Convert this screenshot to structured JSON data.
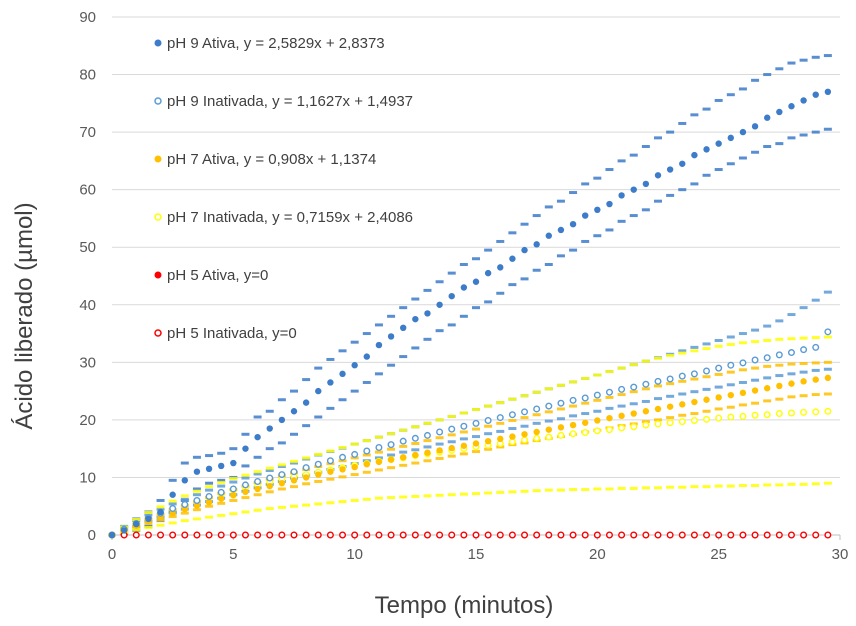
{
  "chart_data": {
    "type": "scatter",
    "title": "",
    "xlabel": "Tempo (minutos)",
    "ylabel": "Ácido liberado (µmol)",
    "xlim": [
      0,
      30
    ],
    "ylim": [
      0,
      90
    ],
    "x_ticks": [
      0,
      5,
      10,
      15,
      20,
      25,
      30
    ],
    "y_ticks": [
      0,
      10,
      20,
      30,
      40,
      50,
      60,
      70,
      80,
      90
    ],
    "grid": "horizontal",
    "legend_position": "top-left",
    "x_step": 0.5,
    "series": [
      {
        "name": "pH 9 Ativa, y = 2,5829x + 2,8373",
        "color": "#3d7cc9",
        "marker": "filled",
        "x": [
          0,
          0.5,
          1,
          1.5,
          2,
          2.5,
          3,
          3.5,
          4,
          4.5,
          5,
          5.5,
          6,
          6.5,
          7,
          7.5,
          8,
          8.5,
          9,
          9.5,
          10,
          10.5,
          11,
          11.5,
          12,
          12.5,
          13,
          13.5,
          14,
          14.5,
          15,
          15.5,
          16,
          16.5,
          17,
          17.5,
          18,
          18.5,
          19,
          19.5,
          20,
          20.5,
          21,
          21.5,
          22,
          22.5,
          23,
          23.5,
          24,
          24.5,
          25,
          25.5,
          26,
          26.5,
          27,
          27.5,
          28,
          28.5,
          29,
          29.5
        ],
        "y": [
          0,
          0.8,
          1.9,
          2.8,
          4,
          7,
          9.5,
          11,
          11.5,
          12,
          12.5,
          15,
          17,
          18.5,
          20,
          21.5,
          23,
          25,
          26.5,
          28,
          29.5,
          31,
          33,
          34.5,
          36,
          37.5,
          38.5,
          40,
          41.5,
          43,
          44,
          45.5,
          46.5,
          48,
          49.5,
          50.5,
          52,
          53,
          54,
          55.5,
          56.5,
          57.5,
          59,
          60,
          61,
          62.5,
          63.5,
          64.5,
          66,
          67,
          68,
          69,
          70,
          71,
          72.5,
          73.5,
          74.5,
          75.5,
          76.5,
          77
        ],
        "upper": [
          0,
          1.5,
          2.8,
          4,
          6,
          9.5,
          12.5,
          13.5,
          13.8,
          14.2,
          15,
          17.5,
          20.5,
          21.5,
          23.5,
          25,
          27,
          29,
          30.5,
          32,
          33.5,
          35,
          36.5,
          38,
          39.5,
          41,
          42.5,
          44,
          45.5,
          47,
          48,
          49.5,
          51,
          52.5,
          54,
          55.5,
          57,
          58,
          59.5,
          61,
          62,
          63.5,
          65,
          66,
          67.5,
          69,
          70,
          71.5,
          73,
          74,
          75.5,
          76.5,
          77.5,
          79,
          80,
          81,
          82,
          82.5,
          83,
          83.3
        ],
        "lower": [
          0,
          0.2,
          0.8,
          1.5,
          2.5,
          4,
          6,
          8,
          9,
          9.5,
          10,
          12,
          13.5,
          15,
          16,
          17.5,
          19,
          20.5,
          22,
          23.5,
          25,
          26.5,
          28,
          29.5,
          31,
          32.5,
          34,
          35.5,
          36.5,
          38,
          39.5,
          40.5,
          42,
          43.5,
          44.5,
          46,
          47,
          48.5,
          49.5,
          51,
          52,
          53,
          54.5,
          55.5,
          56.5,
          58,
          59,
          60,
          61,
          62.5,
          63.5,
          64.5,
          65.5,
          66.5,
          67.5,
          68,
          69,
          69.5,
          70,
          70.5
        ]
      },
      {
        "name": "pH 9 Inativada, y = 1,1627x + 1,4937",
        "color": "#5b9bd5",
        "marker": "open",
        "x": [
          0,
          0.5,
          1,
          1.5,
          2,
          2.5,
          3,
          3.5,
          4,
          4.5,
          5,
          5.5,
          6,
          6.5,
          7,
          7.5,
          8,
          8.5,
          9,
          9.5,
          10,
          10.5,
          11,
          11.5,
          12,
          12.5,
          13,
          13.5,
          14,
          14.5,
          15,
          15.5,
          16,
          16.5,
          17,
          17.5,
          18,
          18.5,
          19,
          19.5,
          20,
          20.5,
          21,
          21.5,
          22,
          22.5,
          23,
          23.5,
          24,
          24.5,
          25,
          25.5,
          26,
          26.5,
          27,
          27.5,
          28,
          28.5,
          29,
          29.5
        ],
        "y": [
          0,
          1,
          2,
          3,
          3.8,
          4.6,
          5.3,
          6,
          6.7,
          7.4,
          8,
          8.7,
          9.3,
          9.9,
          10.5,
          11,
          11.7,
          12.3,
          12.9,
          13.5,
          14,
          14.6,
          15.2,
          15.7,
          16.3,
          16.8,
          17.3,
          17.9,
          18.4,
          18.9,
          19.4,
          19.9,
          20.4,
          20.9,
          21.4,
          21.9,
          22.4,
          22.9,
          23.4,
          23.8,
          24.3,
          24.8,
          25.3,
          25.7,
          26.2,
          26.7,
          27.1,
          27.6,
          28,
          28.5,
          29,
          29.5,
          29.9,
          30.4,
          30.8,
          31.3,
          31.7,
          32.2,
          32.6,
          35.3
        ],
        "upper": [
          0,
          1.3,
          2.5,
          3.5,
          4.5,
          5.4,
          6.2,
          7,
          7.8,
          8.5,
          9.2,
          9.9,
          10.6,
          11.2,
          11.9,
          12.5,
          13.2,
          13.9,
          14.5,
          15.1,
          15.8,
          16.4,
          17,
          17.6,
          18.2,
          18.8,
          19.4,
          20,
          20.6,
          21.2,
          21.8,
          22.4,
          23,
          23.6,
          24.2,
          24.8,
          25.4,
          26,
          26.6,
          27.2,
          27.8,
          28.4,
          29,
          29.6,
          30.2,
          30.8,
          31.4,
          32,
          32.6,
          33.2,
          33.8,
          34.4,
          35,
          35.6,
          36.3,
          37.2,
          38.3,
          39.5,
          40.8,
          42.2
        ],
        "lower": [
          0,
          0.7,
          1.5,
          2.4,
          3.1,
          3.8,
          4.5,
          5.2,
          5.8,
          6.4,
          7,
          7.6,
          8.2,
          8.8,
          9.3,
          9.9,
          10.4,
          10.9,
          11.4,
          11.9,
          12.4,
          12.9,
          13.4,
          13.9,
          14.4,
          14.8,
          15.3,
          15.8,
          16.2,
          16.7,
          17.1,
          17.6,
          18,
          18.5,
          18.9,
          19.4,
          19.8,
          20.2,
          20.7,
          21.1,
          21.5,
          22,
          22.4,
          22.8,
          23.2,
          23.7,
          24.1,
          24.5,
          24.9,
          25.3,
          25.7,
          26.1,
          26.5,
          26.9,
          27.3,
          27.7,
          28,
          28.3,
          28.6,
          28.8
        ]
      },
      {
        "name": "pH 7 Ativa, y = 0,908x + 1,1374",
        "color": "#ffc000",
        "marker": "filled",
        "x": [
          0,
          0.5,
          1,
          1.5,
          2,
          2.5,
          3,
          3.5,
          4,
          4.5,
          5,
          5.5,
          6,
          6.5,
          7,
          7.5,
          8,
          8.5,
          9,
          9.5,
          10,
          10.5,
          11,
          11.5,
          12,
          12.5,
          13,
          13.5,
          14,
          14.5,
          15,
          15.5,
          16,
          16.5,
          17,
          17.5,
          18,
          18.5,
          19,
          19.5,
          20,
          20.5,
          21,
          21.5,
          22,
          22.5,
          23,
          23.5,
          24,
          24.5,
          25,
          25.5,
          26,
          26.5,
          27,
          27.5,
          28,
          28.5,
          29,
          29.5
        ],
        "y": [
          0,
          0.8,
          1.6,
          2.4,
          3.1,
          3.8,
          4.5,
          5.1,
          5.7,
          6.3,
          6.9,
          7.5,
          8,
          8.5,
          9,
          9.5,
          10,
          10.5,
          11,
          11.4,
          11.8,
          12.3,
          12.7,
          13.1,
          13.5,
          13.9,
          14.3,
          14.7,
          15.1,
          15.5,
          15.9,
          16.3,
          16.7,
          17.1,
          17.5,
          17.9,
          18.3,
          18.7,
          19.1,
          19.5,
          19.9,
          20.3,
          20.7,
          21.1,
          21.5,
          21.9,
          22.3,
          22.7,
          23.1,
          23.5,
          23.9,
          24.3,
          24.7,
          25.1,
          25.5,
          25.9,
          26.3,
          26.7,
          27,
          27.3
        ],
        "upper": [
          0,
          1,
          1.9,
          2.8,
          3.6,
          4.4,
          5.1,
          5.8,
          6.5,
          7.2,
          7.9,
          8.5,
          9.1,
          9.7,
          10.3,
          10.8,
          11.4,
          11.9,
          12.4,
          12.9,
          13.4,
          13.9,
          14.4,
          14.9,
          15.4,
          15.9,
          16.4,
          16.9,
          17.4,
          17.9,
          18.4,
          18.9,
          19.4,
          19.9,
          20.4,
          20.9,
          21.4,
          21.9,
          22.4,
          22.9,
          23.4,
          23.9,
          24.4,
          24.9,
          25.4,
          25.9,
          26.3,
          26.7,
          27.1,
          27.5,
          27.9,
          28.3,
          28.7,
          29,
          29.3,
          29.5,
          29.7,
          29.8,
          29.9,
          30
        ],
        "lower": [
          0,
          0.6,
          1.3,
          2,
          2.6,
          3.2,
          3.8,
          4.4,
          5,
          5.5,
          6,
          6.5,
          7,
          7.5,
          8,
          8.4,
          8.9,
          9.3,
          9.7,
          10.1,
          10.5,
          10.9,
          11.3,
          11.7,
          12.1,
          12.5,
          12.9,
          13.3,
          13.7,
          14.1,
          14.5,
          14.9,
          15.3,
          15.7,
          16,
          16.4,
          16.8,
          17.1,
          17.5,
          17.9,
          18.2,
          18.6,
          19,
          19.3,
          19.7,
          20,
          20.4,
          20.8,
          21.1,
          21.5,
          21.9,
          22.2,
          22.6,
          22.9,
          23.3,
          23.6,
          24,
          24.2,
          24.4,
          24.5
        ]
      },
      {
        "name": "pH 7 Inativada, y = 0,7159x + 2,4086",
        "color": "#ffff00",
        "marker": "open",
        "x": [
          0,
          0.5,
          1,
          1.5,
          2,
          2.5,
          3,
          3.5,
          4,
          4.5,
          5,
          5.5,
          6,
          6.5,
          7,
          7.5,
          8,
          8.5,
          9,
          9.5,
          10,
          10.5,
          11,
          11.5,
          12,
          12.5,
          13,
          13.5,
          14,
          14.5,
          15,
          15.5,
          16,
          16.5,
          17,
          17.5,
          18,
          18.5,
          19,
          19.5,
          20,
          20.5,
          21,
          21.5,
          22,
          22.5,
          23,
          23.5,
          24,
          24.5,
          25,
          25.5,
          26,
          26.5,
          27,
          27.5,
          28,
          28.5,
          29,
          29.5
        ],
        "y": [
          0,
          1,
          2,
          2.9,
          3.7,
          4.5,
          5.2,
          5.9,
          6.5,
          7.1,
          7.7,
          8.2,
          8.7,
          9.2,
          9.7,
          10.1,
          10.5,
          10.9,
          11.3,
          11.7,
          12.1,
          12.4,
          12.8,
          13.1,
          13.4,
          13.8,
          14.1,
          14.4,
          14.7,
          15,
          15.3,
          15.6,
          15.9,
          16.2,
          16.5,
          16.8,
          17,
          17.3,
          17.6,
          17.8,
          18.1,
          18.3,
          18.6,
          18.8,
          19.1,
          19.3,
          19.5,
          19.7,
          19.9,
          20.1,
          20.3,
          20.5,
          20.6,
          20.8,
          20.9,
          21.1,
          21.2,
          21.3,
          21.4,
          21.5
        ],
        "upper": [
          0,
          1.4,
          2.7,
          3.9,
          4.9,
          5.9,
          6.8,
          7.6,
          8.4,
          9.1,
          9.8,
          10.4,
          11,
          11.6,
          12.2,
          12.8,
          13.4,
          14,
          14.6,
          15.2,
          15.8,
          16.4,
          17,
          17.6,
          18.2,
          18.8,
          19.4,
          20,
          20.6,
          21.2,
          21.8,
          22.4,
          23,
          23.6,
          24.2,
          24.8,
          25.4,
          26,
          26.6,
          27.2,
          27.8,
          28.4,
          29,
          29.6,
          30.2,
          30.7,
          31.2,
          31.6,
          32,
          32.4,
          32.8,
          33.1,
          33.4,
          33.6,
          33.8,
          34,
          34.1,
          34.2,
          34.3,
          34.4
        ],
        "lower": [
          0,
          0.4,
          0.9,
          1.3,
          1.7,
          2.1,
          2.5,
          2.8,
          3.1,
          3.4,
          3.7,
          4,
          4.3,
          4.6,
          4.8,
          5,
          5.2,
          5.4,
          5.6,
          5.8,
          6,
          6.2,
          6.4,
          6.5,
          6.6,
          6.7,
          6.8,
          6.9,
          7,
          7.1,
          7.2,
          7.3,
          7.4,
          7.5,
          7.6,
          7.7,
          7.8,
          7.8,
          7.9,
          7.9,
          8,
          8,
          8.1,
          8.1,
          8.2,
          8.2,
          8.3,
          8.3,
          8.4,
          8.4,
          8.5,
          8.5,
          8.6,
          8.6,
          8.7,
          8.7,
          8.8,
          8.8,
          8.9,
          9
        ]
      },
      {
        "name": "pH 5 Ativa, y=0",
        "color": "#ff0000",
        "marker": "filled",
        "x": [
          0,
          0.5,
          1,
          1.5,
          2,
          2.5,
          3,
          3.5,
          4,
          4.5,
          5,
          5.5,
          6,
          6.5,
          7,
          7.5,
          8,
          8.5,
          9,
          9.5,
          10,
          10.5,
          11,
          11.5,
          12,
          12.5,
          13,
          13.5,
          14,
          14.5,
          15,
          15.5,
          16,
          16.5,
          17,
          17.5,
          18,
          18.5,
          19,
          19.5,
          20,
          20.5,
          21,
          21.5,
          22,
          22.5,
          23,
          23.5,
          24,
          24.5,
          25,
          25.5,
          26,
          26.5,
          27,
          27.5,
          28,
          28.5,
          29,
          29.5
        ],
        "y": [
          0,
          0,
          0,
          0,
          0,
          0,
          0,
          0,
          0,
          0,
          0,
          0,
          0,
          0,
          0,
          0,
          0,
          0,
          0,
          0,
          0,
          0,
          0,
          0,
          0,
          0,
          0,
          0,
          0,
          0,
          0,
          0,
          0,
          0,
          0,
          0,
          0,
          0,
          0,
          0,
          0,
          0,
          0,
          0,
          0,
          0,
          0,
          0,
          0,
          0,
          0,
          0,
          0,
          0,
          0,
          0,
          0,
          0,
          0,
          0
        ]
      },
      {
        "name": "pH 5 Inativada, y=0",
        "color": "#ff0000",
        "marker": "open",
        "x": [
          0,
          0.5,
          1,
          1.5,
          2,
          2.5,
          3,
          3.5,
          4,
          4.5,
          5,
          5.5,
          6,
          6.5,
          7,
          7.5,
          8,
          8.5,
          9,
          9.5,
          10,
          10.5,
          11,
          11.5,
          12,
          12.5,
          13,
          13.5,
          14,
          14.5,
          15,
          15.5,
          16,
          16.5,
          17,
          17.5,
          18,
          18.5,
          19,
          19.5,
          20,
          20.5,
          21,
          21.5,
          22,
          22.5,
          23,
          23.5,
          24,
          24.5,
          25,
          25.5,
          26,
          26.5,
          27,
          27.5,
          28,
          28.5,
          29,
          29.5
        ],
        "y": [
          0,
          0,
          0,
          0,
          0,
          0,
          0,
          0,
          0,
          0,
          0,
          0,
          0,
          0,
          0,
          0,
          0,
          0,
          0,
          0,
          0,
          0,
          0,
          0,
          0,
          0,
          0,
          0,
          0,
          0,
          0,
          0,
          0,
          0,
          0,
          0,
          0,
          0,
          0,
          0,
          0,
          0,
          0,
          0,
          0,
          0,
          0,
          0,
          0,
          0,
          0,
          0,
          0,
          0,
          0,
          0,
          0,
          0,
          0,
          0
        ]
      }
    ]
  }
}
